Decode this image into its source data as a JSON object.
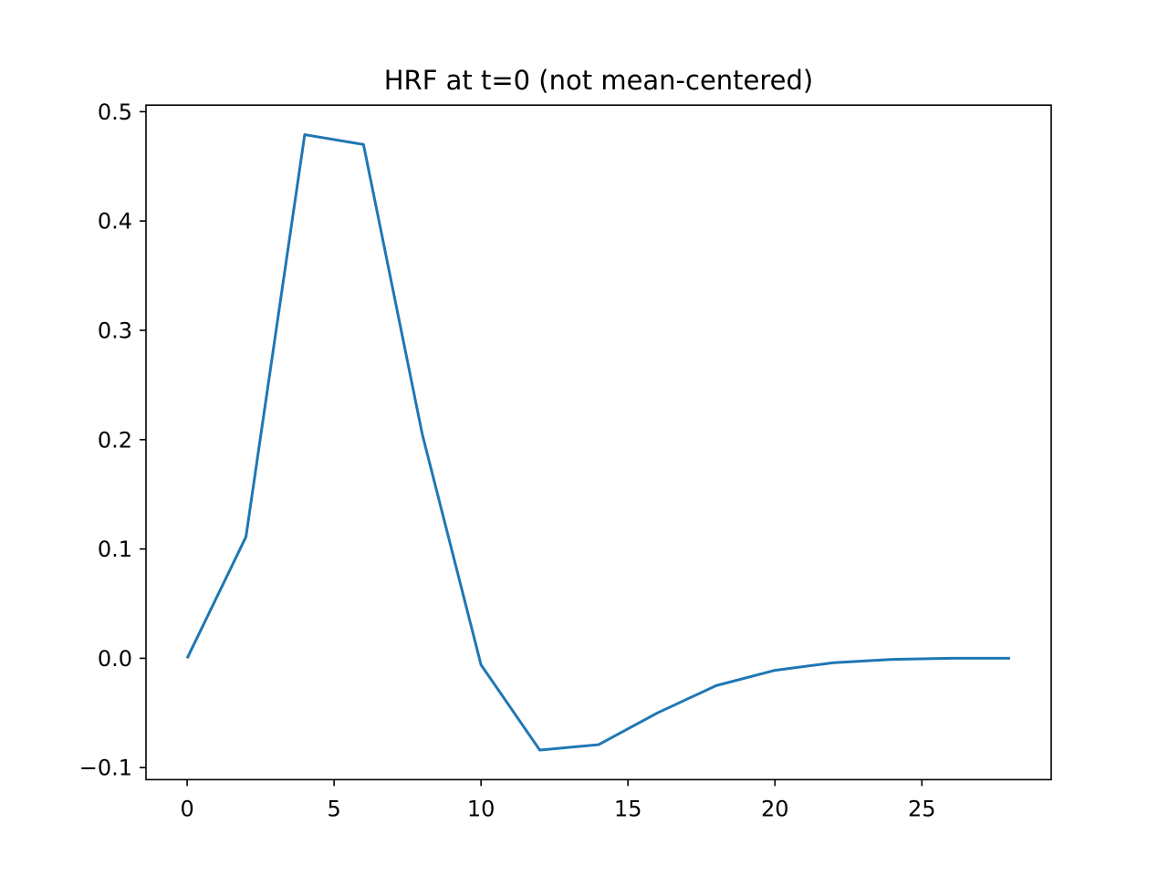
{
  "chart_data": {
    "type": "line",
    "title": "HRF at t=0 (not mean-centered)",
    "xlabel": "",
    "ylabel": "",
    "xlim": [
      -1.4,
      29.4
    ],
    "ylim": [
      -0.111,
      0.506
    ],
    "x_ticks": [
      0,
      5,
      10,
      15,
      20,
      25
    ],
    "x_tick_labels": [
      "0",
      "5",
      "10",
      "15",
      "20",
      "25"
    ],
    "y_ticks": [
      -0.1,
      0.0,
      0.1,
      0.2,
      0.3,
      0.4,
      0.5
    ],
    "y_tick_labels": [
      "−0.1",
      "0.0",
      "0.1",
      "0.2",
      "0.3",
      "0.4",
      "0.5"
    ],
    "grid": false,
    "legend": "none",
    "series": [
      {
        "color": "#1f77b4",
        "x": [
          0,
          2,
          4,
          6,
          8,
          10,
          12,
          14,
          16,
          18,
          20,
          22,
          24,
          26,
          28
        ],
        "y": [
          0.0,
          0.111,
          0.479,
          0.47,
          0.205,
          -0.006,
          -0.084,
          -0.079,
          -0.05,
          -0.025,
          -0.011,
          -0.004,
          -0.001,
          0.0,
          0.0
        ]
      }
    ]
  }
}
